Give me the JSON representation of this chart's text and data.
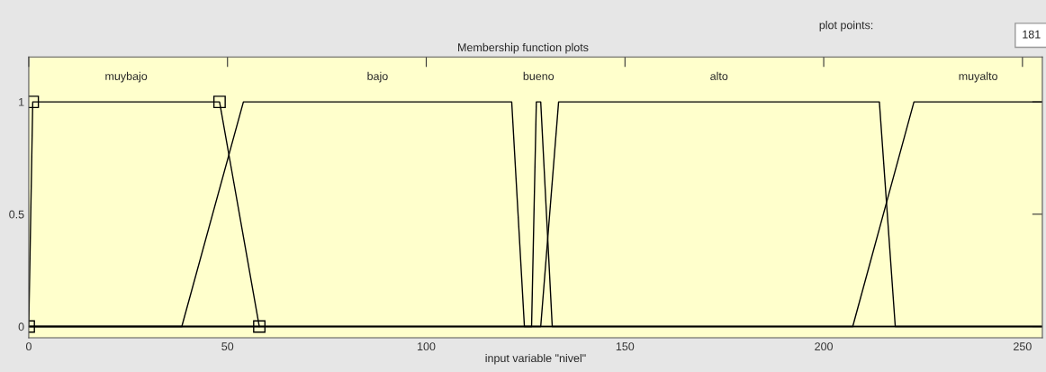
{
  "chart_data": {
    "type": "line",
    "title": "Membership function plots",
    "xlabel": "input variable \"nivel\"",
    "annotations": [
      "plot points:",
      "181"
    ],
    "xlim": [
      0,
      255
    ],
    "xticks": [
      0,
      50,
      100,
      150,
      200,
      250
    ],
    "ylim": [
      -0.05,
      1.2
    ],
    "yticks": [
      0,
      0.5,
      1
    ],
    "grid": false,
    "legend": false,
    "series": [
      {
        "name": "muybajo",
        "color": "#000000",
        "marker": "square",
        "x": [
          0,
          1,
          48,
          58
        ],
        "values": [
          0,
          1,
          1,
          0
        ]
      },
      {
        "name": "bajo",
        "color": "#000000",
        "x": [
          0,
          38.5,
          54,
          121.5,
          124.7,
          255
        ],
        "values": [
          0,
          0,
          1,
          1,
          0,
          0
        ]
      },
      {
        "name": "bueno",
        "color": "#000000",
        "x": [
          0,
          126.5,
          127.7,
          128.8,
          131.7,
          255
        ],
        "values": [
          0,
          0,
          1,
          1,
          0,
          0
        ]
      },
      {
        "name": "alto",
        "color": "#000000",
        "x": [
          0,
          128.8,
          133.3,
          214,
          218,
          255
        ],
        "values": [
          0,
          0,
          1,
          1,
          0,
          0
        ]
      },
      {
        "name": "muyalto",
        "color": "#000000",
        "x": [
          0,
          207.3,
          222.7,
          255
        ],
        "values": [
          0,
          0,
          1,
          1
        ]
      }
    ]
  }
}
